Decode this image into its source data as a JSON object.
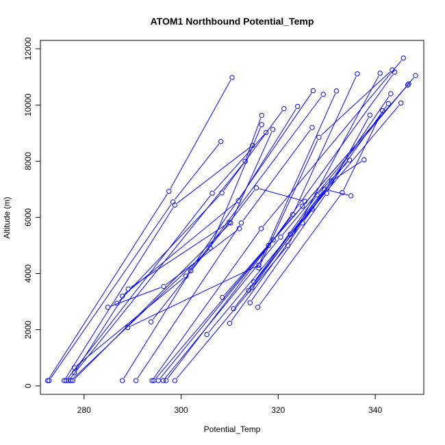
{
  "chart_data": {
    "type": "line",
    "title": "ATOM1 Northbound Potential_Temp",
    "xlabel": "Potential_Temp",
    "ylabel": "Altitude (m)",
    "xlim": [
      271,
      350
    ],
    "ylim": [
      -300,
      12300
    ],
    "xticks": [
      280,
      300,
      320,
      340
    ],
    "yticks": [
      0,
      2000,
      4000,
      6000,
      8000,
      10000,
      12000
    ],
    "grid": false,
    "series_color": "#0000ff",
    "marker": "open-circle",
    "series": [
      {
        "x": [
          272.5,
          297.5,
          310.5
        ],
        "y": [
          190,
          6930,
          10980
        ]
      },
      {
        "x": [
          272.8,
          298.3,
          308.2
        ],
        "y": [
          190,
          6550,
          8700
        ]
      },
      {
        "x": [
          275.9,
          298.7,
          314.7
        ],
        "y": [
          190,
          6440,
          8560
        ]
      },
      {
        "x": [
          276.3,
          306.4,
          317.5
        ],
        "y": [
          190,
          6860,
          9020
        ]
      },
      {
        "x": [
          276.8,
          313.2,
          316.6
        ],
        "y": [
          190,
          8000,
          9630
        ]
      },
      {
        "x": [
          277.3,
          306.0,
          316.6
        ],
        "y": [
          190,
          4910,
          9300
        ]
      },
      {
        "x": [
          277.7,
          310.2,
          318.9
        ],
        "y": [
          190,
          5800,
          9130
        ]
      },
      {
        "x": [
          278.0,
          301.0,
          327.2
        ],
        "y": [
          650,
          3910,
          10510
        ]
      },
      {
        "x": [
          278.0,
          289.1,
          309.9
        ],
        "y": [
          470,
          3450,
          5820
        ]
      },
      {
        "x": [
          284.9,
          296.4,
          312.0
        ],
        "y": [
          2800,
          3540,
          5600
        ]
      },
      {
        "x": [
          286.8,
          308.4,
          321.2
        ],
        "y": [
          2940,
          6870,
          9870
        ]
      },
      {
        "x": [
          287.9,
          311.8,
          324.0
        ],
        "y": [
          3200,
          6590,
          9950
        ]
      },
      {
        "x": [
          287.9,
          302.0,
          329.3
        ],
        "y": [
          190,
          4100,
          10380
        ]
      },
      {
        "x": [
          290.7,
          312.4,
          327.0
        ],
        "y": [
          190,
          5800,
          9200
        ]
      },
      {
        "x": [
          289.0,
          316.0,
          332.0
        ],
        "y": [
          2080,
          4300,
          10500
        ]
      },
      {
        "x": [
          293.8,
          315.5,
          325.5
        ],
        "y": [
          2280,
          7050,
          6570
        ]
      },
      {
        "x": [
          294.0,
          316.5,
          345.8
        ],
        "y": [
          190,
          5600,
          11670
        ]
      },
      {
        "x": [
          294.4,
          318.0,
          346.7
        ],
        "y": [
          190,
          5000,
          10710
        ]
      },
      {
        "x": [
          295.3,
          319.0,
          344.0
        ],
        "y": [
          190,
          5200,
          11170
        ]
      },
      {
        "x": [
          296.3,
          320.5,
          348.3
        ],
        "y": [
          190,
          5300,
          11050
        ]
      },
      {
        "x": [
          296.9,
          323.0,
          336.3
        ],
        "y": [
          190,
          6100,
          11110
        ]
      },
      {
        "x": [
          298.7,
          322.0,
          341.0
        ],
        "y": [
          190,
          5000,
          11130
        ]
      },
      {
        "x": [
          308.5,
          325.0,
          346.9
        ],
        "y": [
          3150,
          6400,
          10750
        ]
      },
      {
        "x": [
          305.3,
          322.5,
          345.3
        ],
        "y": [
          1830,
          5400,
          10070
        ]
      },
      {
        "x": [
          310.0,
          325.0,
          342.7
        ],
        "y": [
          2230,
          5800,
          10050
        ]
      },
      {
        "x": [
          310.8,
          327.0,
          343.2
        ],
        "y": [
          2750,
          6300,
          10400
        ]
      },
      {
        "x": [
          314.2,
          330.0,
          338.9
        ],
        "y": [
          2960,
          6860,
          9640
        ]
      },
      {
        "x": [
          315.8,
          333.2,
          341.5
        ],
        "y": [
          2800,
          6880,
          9800
        ]
      },
      {
        "x": [
          314.6,
          331.0,
          337.7
        ],
        "y": [
          3500,
          7300,
          8050
        ]
      },
      {
        "x": [
          315.0,
          329.5,
          335.0
        ],
        "y": [
          3700,
          7000,
          6770
        ]
      },
      {
        "x": [
          313.9,
          328.0,
          334.7
        ],
        "y": [
          3400,
          6800,
          8040
        ]
      },
      {
        "x": [
          316.0,
          328.4,
          343.5
        ],
        "y": [
          4200,
          8850,
          11250
        ]
      }
    ]
  }
}
